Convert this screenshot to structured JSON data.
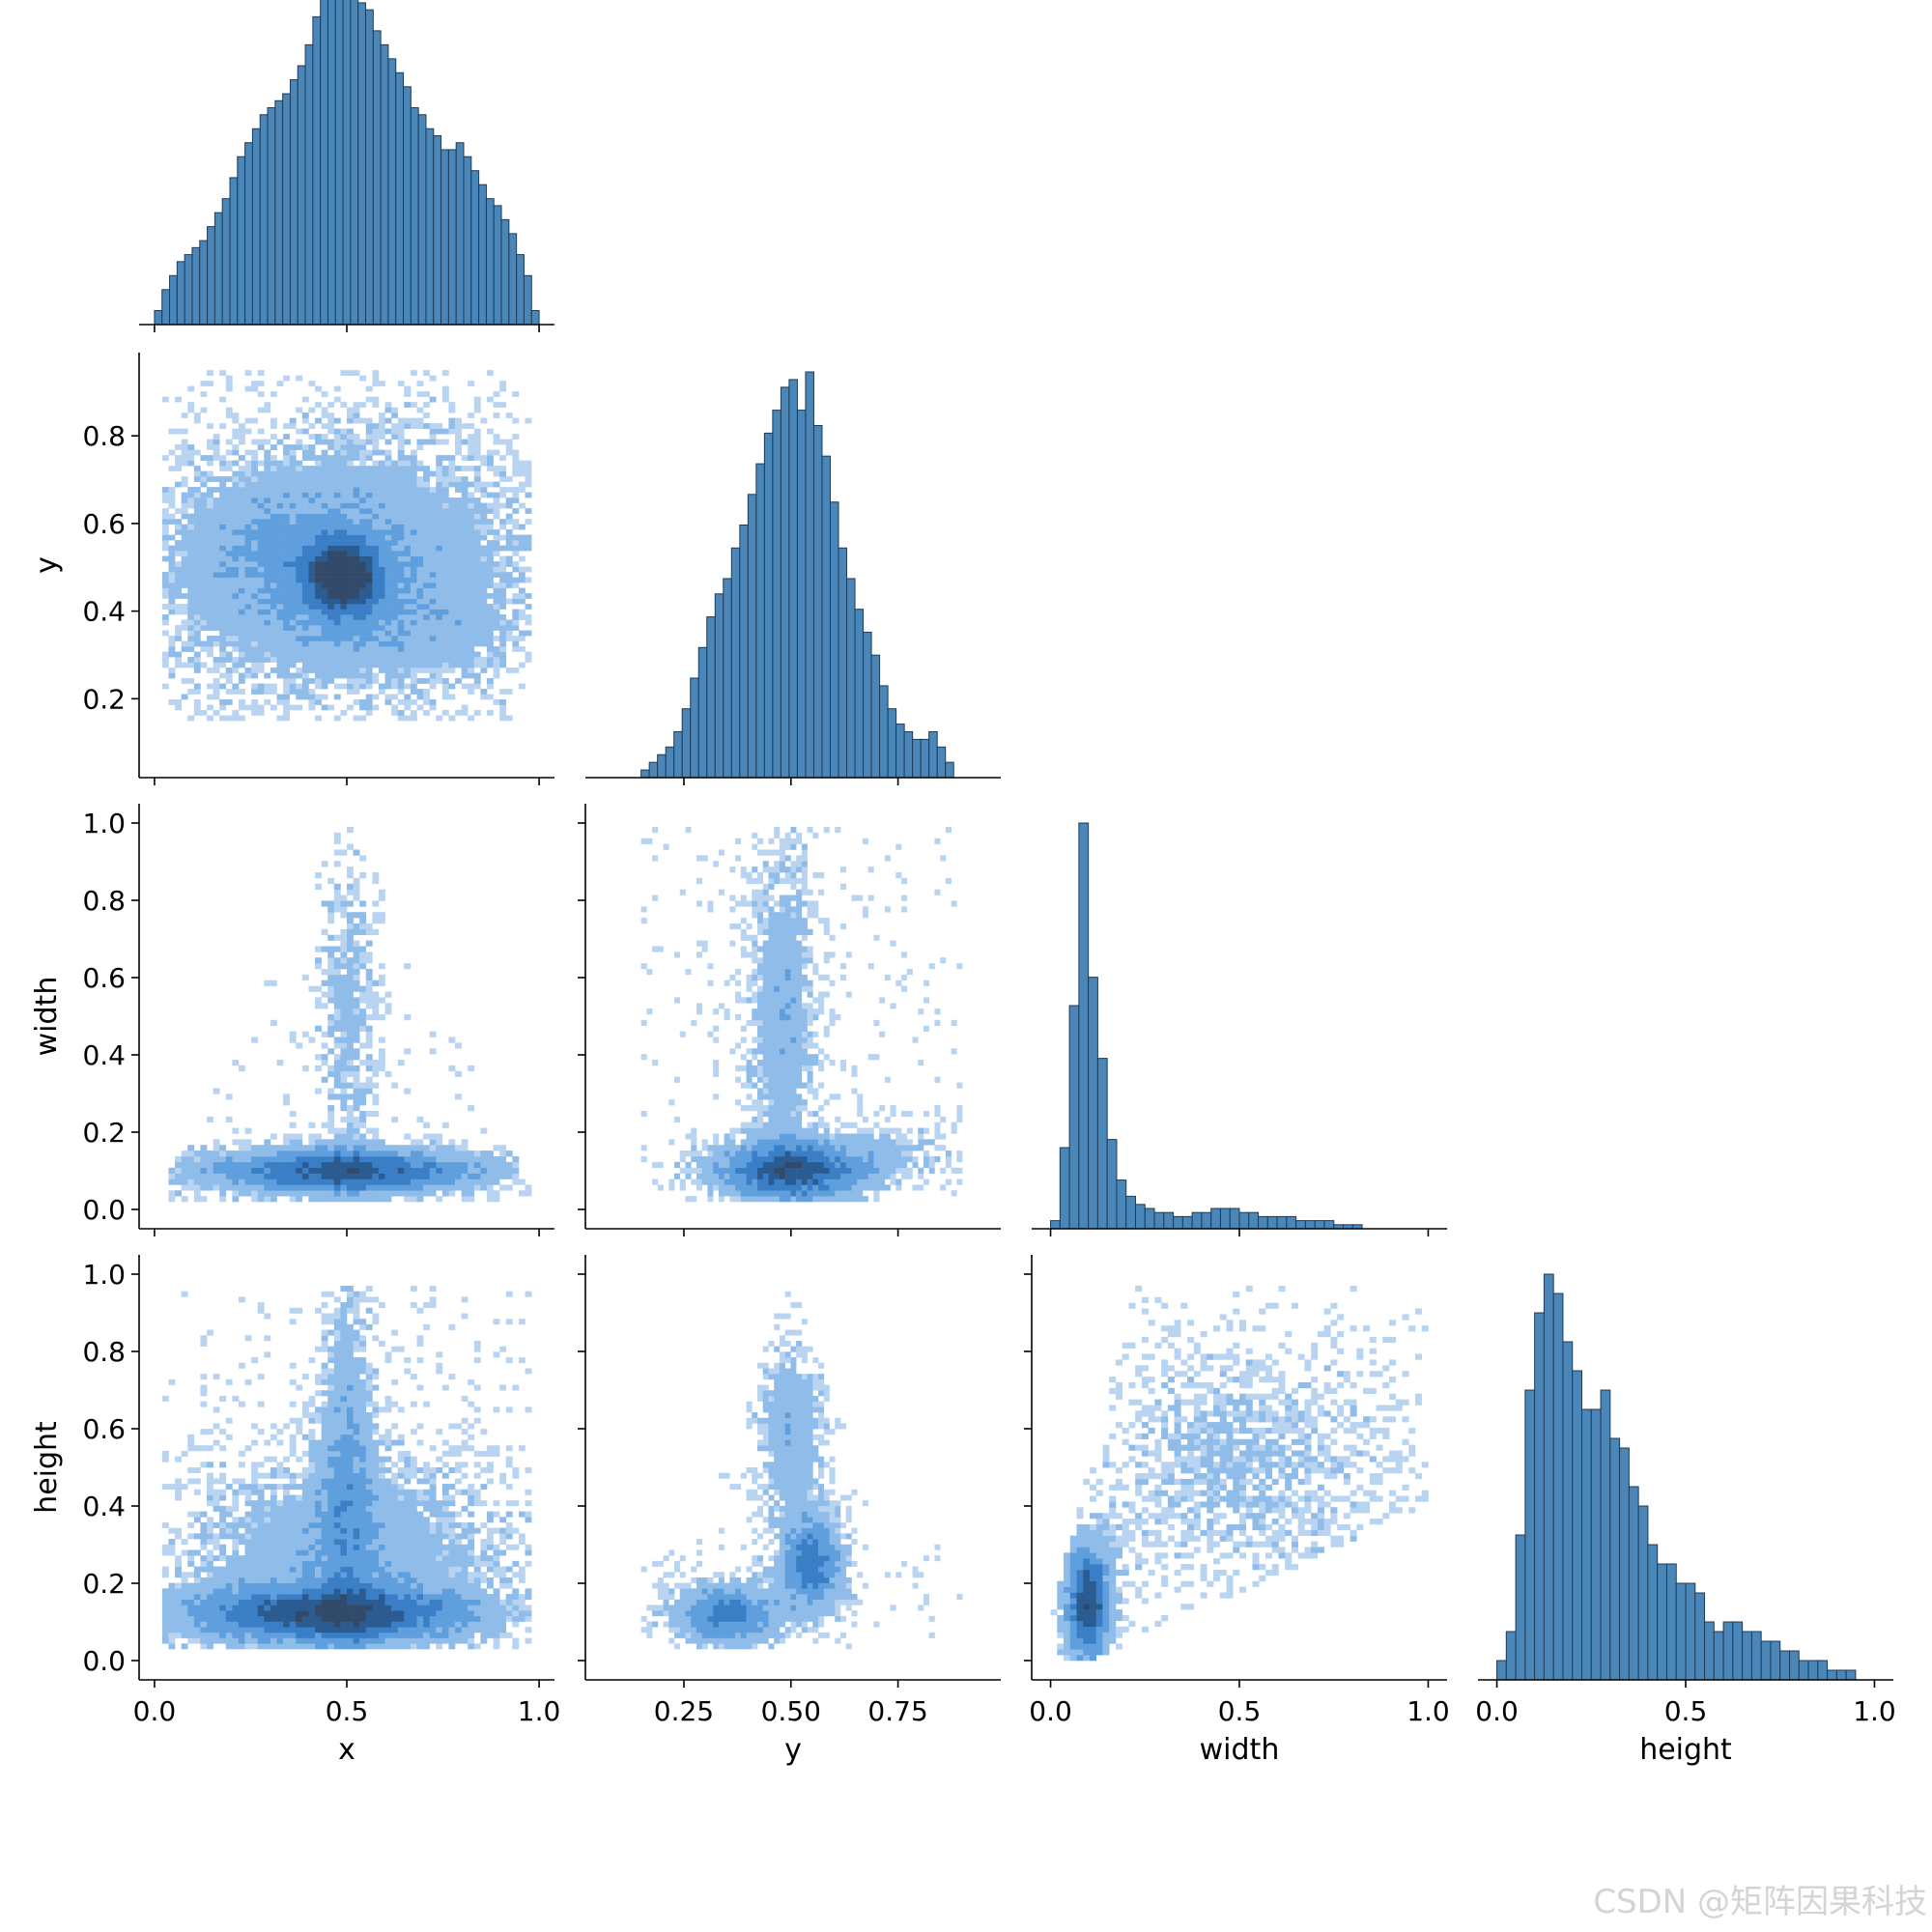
{
  "figure": {
    "watermark": "CSDN @矩阵因果科技",
    "diag_color": "#4a86b8",
    "heat_colors": [
      "#b9d4f1",
      "#8fbce9",
      "#5f9fdd",
      "#3a7fc6",
      "#2a5c92",
      "#324a6a"
    ]
  },
  "chart_data": [
    {
      "type": "histogram",
      "row": 0,
      "col": 0,
      "variable": "x",
      "xlim": [
        -0.04,
        1.04
      ],
      "bin_range": [
        0.0,
        1.0
      ],
      "counts": [
        2,
        5,
        7,
        9,
        10,
        11,
        12,
        14,
        16,
        18,
        21,
        24,
        26,
        28,
        30,
        31,
        32,
        33,
        35,
        37,
        40,
        44,
        47,
        50,
        58,
        52,
        48,
        46,
        45,
        42,
        40,
        38,
        36,
        34,
        31,
        30,
        28,
        27,
        25,
        25,
        26,
        24,
        22,
        20,
        18,
        17,
        15,
        13,
        10,
        7,
        2
      ]
    },
    {
      "type": "heatmap",
      "row": 1,
      "col": 0,
      "x_var": "x",
      "y_var": "y",
      "xlim": [
        -0.04,
        1.04
      ],
      "ylim": [
        0.02,
        0.99
      ],
      "yticks": [
        0.2,
        0.4,
        0.6,
        0.8
      ],
      "ylabel": "y",
      "blobs": [
        {
          "cx": 0.5,
          "cy": 0.5,
          "sx": 0.33,
          "sy": 0.2,
          "w": 1.0
        },
        {
          "cx": 0.49,
          "cy": 0.48,
          "sx": 0.06,
          "sy": 0.05,
          "w": 3.0
        },
        {
          "cx": 0.33,
          "cy": 0.55,
          "sx": 0.18,
          "sy": 0.1,
          "w": 0.4
        },
        {
          "cx": 0.62,
          "cy": 0.36,
          "sx": 0.2,
          "sy": 0.06,
          "w": 0.3
        }
      ],
      "extent": {
        "x": [
          0.02,
          0.98
        ],
        "y": [
          0.15,
          0.95
        ]
      }
    },
    {
      "type": "histogram",
      "row": 1,
      "col": 1,
      "variable": "y",
      "xlim": [
        0.02,
        0.99
      ],
      "bin_range": [
        0.15,
        0.88
      ],
      "counts": [
        1,
        2,
        3,
        4,
        6,
        9,
        13,
        17,
        21,
        24,
        26,
        30,
        33,
        37,
        41,
        45,
        48,
        51,
        52,
        48,
        53,
        46,
        42,
        36,
        30,
        26,
        22,
        19,
        16,
        12,
        9,
        7,
        6,
        5,
        5,
        6,
        4,
        2
      ]
    },
    {
      "type": "heatmap",
      "row": 2,
      "col": 0,
      "x_var": "x",
      "y_var": "width",
      "xlim": [
        -0.04,
        1.04
      ],
      "ylim": [
        -0.05,
        1.05
      ],
      "yticks": [
        0.0,
        0.2,
        0.4,
        0.6,
        0.8,
        1.0
      ],
      "ylabel": "width",
      "shape": "triangle",
      "blobs": [
        {
          "cx": 0.5,
          "cy": 0.1,
          "sx": 0.25,
          "sy": 0.04,
          "w": 2.5
        },
        {
          "cx": 0.5,
          "cy": 0.5,
          "sx": 0.05,
          "sy": 0.3,
          "w": 0.6
        }
      ],
      "extent": {
        "x": [
          0.02,
          0.98
        ],
        "y": [
          0.02,
          0.99
        ]
      }
    },
    {
      "type": "heatmap",
      "row": 2,
      "col": 1,
      "x_var": "y",
      "y_var": "width",
      "xlim": [
        0.02,
        0.99
      ],
      "ylim": [
        -0.05,
        1.05
      ],
      "yticks": [
        0.0,
        0.2,
        0.4,
        0.6,
        0.8,
        1.0
      ],
      "blobs": [
        {
          "cx": 0.5,
          "cy": 0.1,
          "sx": 0.12,
          "sy": 0.05,
          "w": 2.5
        },
        {
          "cx": 0.48,
          "cy": 0.5,
          "sx": 0.05,
          "sy": 0.28,
          "w": 0.9
        },
        {
          "cx": 0.72,
          "cy": 0.15,
          "sx": 0.12,
          "sy": 0.05,
          "w": 0.4
        }
      ],
      "extent": {
        "x": [
          0.15,
          0.9
        ],
        "y": [
          0.02,
          0.99
        ]
      }
    },
    {
      "type": "histogram",
      "row": 2,
      "col": 2,
      "variable": "width",
      "xlim": [
        -0.05,
        1.05
      ],
      "bin_range": [
        0.0,
        0.95
      ],
      "counts": [
        2,
        20,
        55,
        100,
        62,
        42,
        22,
        12,
        8,
        6,
        5,
        4,
        4,
        3,
        3,
        4,
        4,
        5,
        5,
        5,
        4,
        4,
        3,
        3,
        3,
        3,
        2,
        2,
        2,
        2,
        1,
        1,
        1,
        0,
        0,
        0,
        0,
        0
      ]
    },
    {
      "type": "heatmap",
      "row": 3,
      "col": 0,
      "x_var": "x",
      "y_var": "height",
      "xlim": [
        -0.04,
        1.04
      ],
      "ylim": [
        -0.05,
        1.05
      ],
      "yticks": [
        0.0,
        0.2,
        0.4,
        0.6,
        0.8,
        1.0
      ],
      "ylabel": "height",
      "xticks": [
        0.0,
        0.5,
        1.0
      ],
      "xlabel": "x",
      "blobs": [
        {
          "cx": 0.45,
          "cy": 0.12,
          "sx": 0.25,
          "sy": 0.05,
          "w": 2.5
        },
        {
          "cx": 0.5,
          "cy": 0.5,
          "sx": 0.05,
          "sy": 0.3,
          "w": 1.0
        },
        {
          "cx": 0.5,
          "cy": 0.3,
          "sx": 0.3,
          "sy": 0.15,
          "w": 0.8
        }
      ],
      "extent": {
        "x": [
          0.02,
          0.98
        ],
        "y": [
          0.03,
          0.97
        ]
      }
    },
    {
      "type": "heatmap",
      "row": 3,
      "col": 1,
      "x_var": "y",
      "y_var": "height",
      "xlim": [
        0.02,
        0.99
      ],
      "ylim": [
        -0.05,
        1.05
      ],
      "yticks": [
        0.0,
        0.2,
        0.4,
        0.6,
        0.8,
        1.0
      ],
      "xticks": [
        0.25,
        0.5,
        0.75
      ],
      "xticklabels": [
        "0.25",
        "0.50",
        "0.75"
      ],
      "xlabel": "y",
      "shape": "peak",
      "blobs": [
        {
          "cx": 0.35,
          "cy": 0.12,
          "sx": 0.08,
          "sy": 0.05,
          "w": 2.0
        },
        {
          "cx": 0.55,
          "cy": 0.25,
          "sx": 0.05,
          "sy": 0.08,
          "w": 2.0
        },
        {
          "cx": 0.5,
          "cy": 0.58,
          "sx": 0.05,
          "sy": 0.15,
          "w": 0.9
        }
      ],
      "extent": {
        "x": [
          0.15,
          0.9
        ],
        "y": [
          0.03,
          0.97
        ]
      }
    },
    {
      "type": "heatmap",
      "row": 3,
      "col": 2,
      "x_var": "width",
      "y_var": "height",
      "xlim": [
        -0.05,
        1.05
      ],
      "ylim": [
        -0.05,
        1.05
      ],
      "yticks": [
        0.0,
        0.2,
        0.4,
        0.6,
        0.8,
        1.0
      ],
      "xticks": [
        0.0,
        0.5,
        1.0
      ],
      "xlabel": "width",
      "shape": "diagonal",
      "blobs": [
        {
          "cx": 0.1,
          "cy": 0.15,
          "sx": 0.04,
          "sy": 0.1,
          "w": 2.8
        },
        {
          "cx": 0.5,
          "cy": 0.5,
          "sx": 0.25,
          "sy": 0.2,
          "w": 0.5
        }
      ],
      "extent": {
        "x": [
          0.0,
          1.0
        ],
        "y": [
          0.0,
          0.97
        ]
      }
    },
    {
      "type": "histogram",
      "row": 3,
      "col": 3,
      "variable": "height",
      "xlim": [
        -0.05,
        1.05
      ],
      "xticks": [
        0.0,
        0.5,
        1.0
      ],
      "xlabel": "height",
      "bin_range": [
        0.0,
        0.95
      ],
      "counts": [
        2,
        5,
        15,
        30,
        38,
        42,
        40,
        35,
        32,
        28,
        28,
        30,
        25,
        24,
        20,
        18,
        14,
        12,
        12,
        10,
        10,
        9,
        6,
        5,
        6,
        6,
        5,
        5,
        4,
        4,
        3,
        3,
        2,
        2,
        2,
        1,
        1,
        1
      ]
    }
  ]
}
